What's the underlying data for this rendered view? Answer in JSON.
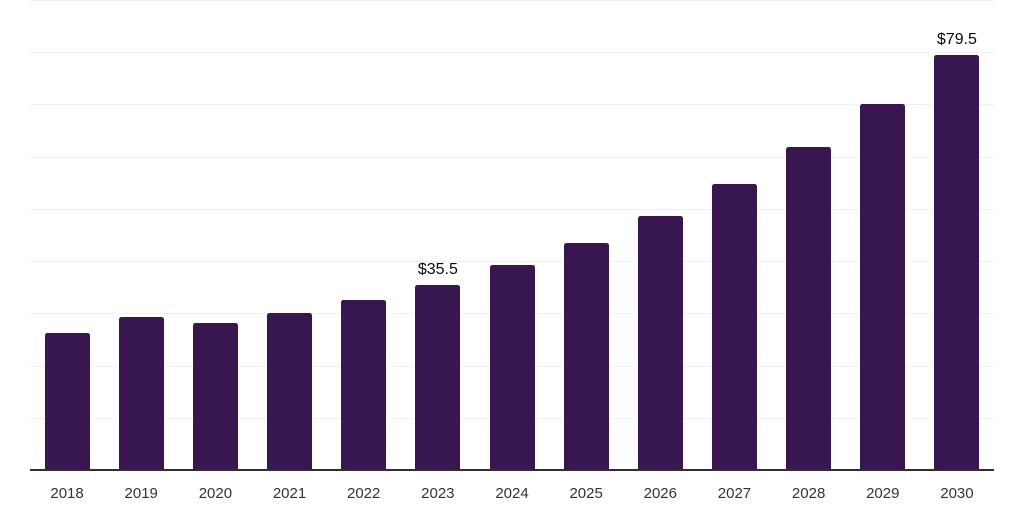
{
  "chart_data": {
    "type": "bar",
    "title": "",
    "xlabel": "",
    "ylabel": "",
    "categories": [
      "2018",
      "2019",
      "2020",
      "2021",
      "2022",
      "2023",
      "2024",
      "2025",
      "2026",
      "2027",
      "2028",
      "2029",
      "2030"
    ],
    "values": [
      26.3,
      29.3,
      28.1,
      30.1,
      32.6,
      35.5,
      39.3,
      43.5,
      48.7,
      54.7,
      61.8,
      70.0,
      79.5
    ],
    "value_labels": {
      "2023": "$35.5",
      "2030": "$79.5"
    },
    "ylim": [
      0,
      90
    ],
    "grid_step": 10,
    "grid": true,
    "legend_position": "none",
    "colors": {
      "bar": "#38164F",
      "gridline": "#f1f1f1",
      "axis": "#2e2e2e",
      "tick_label": "#333333",
      "value_label": "#0a0a0a",
      "background": "#ffffff"
    }
  }
}
